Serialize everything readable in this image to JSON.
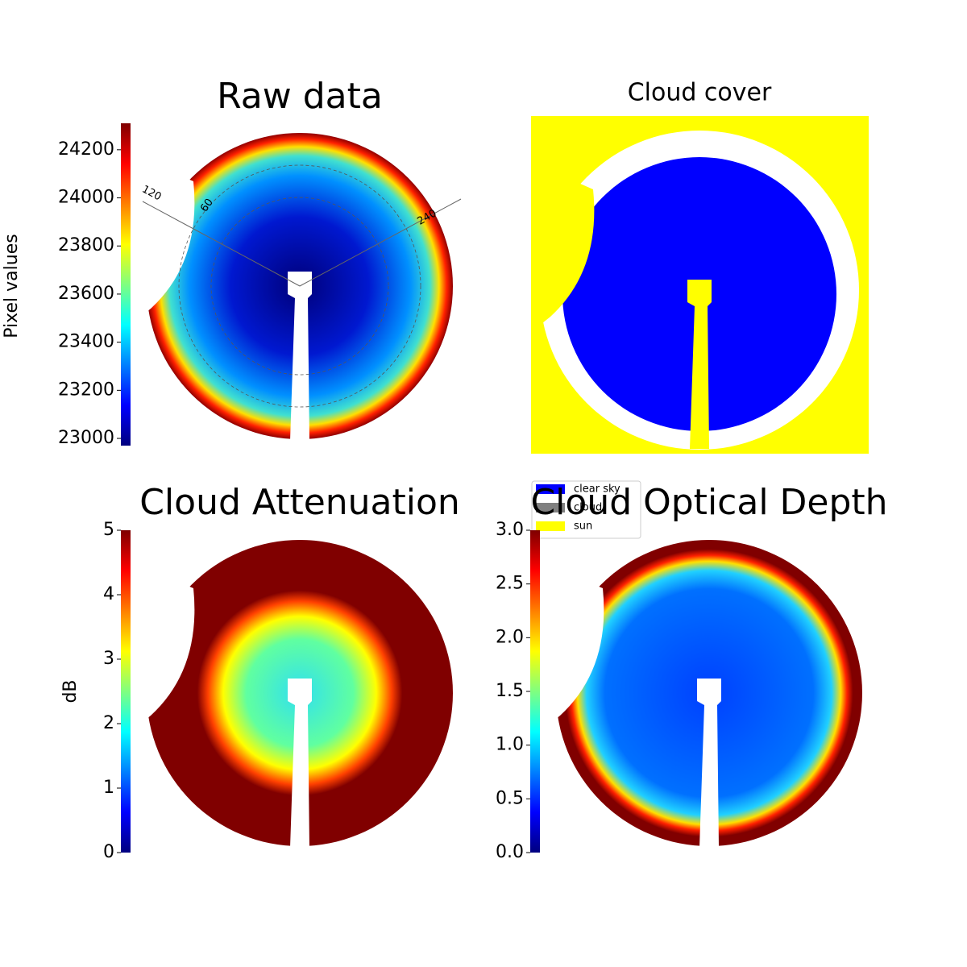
{
  "chart_data": [
    {
      "type": "image",
      "title": "Raw data",
      "colorbar": {
        "label": "Pixel values",
        "ylim": [
          22970,
          24310
        ],
        "yticks": [
          23000,
          23200,
          23400,
          23600,
          23800,
          24000,
          24200
        ]
      },
      "annotations": [
        "120",
        "60",
        "240"
      ]
    },
    {
      "type": "classes",
      "title": "Cloud cover",
      "series": [
        {
          "name": "clear sky",
          "color": "#0000ff"
        },
        {
          "name": "cloud",
          "color": "#808080"
        },
        {
          "name": "sun",
          "color": "#ffff00"
        }
      ]
    },
    {
      "type": "image",
      "title": "Cloud Attenuation",
      "colorbar": {
        "label": "dB",
        "ylim": [
          0,
          5
        ],
        "yticks": [
          0,
          1,
          2,
          3,
          4,
          5
        ]
      }
    },
    {
      "type": "image",
      "title": "Cloud Optical Depth",
      "colorbar": {
        "ylim": [
          0,
          3
        ],
        "yticks": [
          {
            "value": 0,
            "label": "0.0"
          },
          {
            "value": 0.5,
            "label": "0.5"
          },
          {
            "value": 1,
            "label": "1.0"
          },
          {
            "value": 1.5,
            "label": "1.5"
          },
          {
            "value": 2,
            "label": "2.0"
          },
          {
            "value": 2.5,
            "label": "2.5"
          },
          {
            "value": 3,
            "label": "3.0"
          }
        ]
      }
    }
  ]
}
